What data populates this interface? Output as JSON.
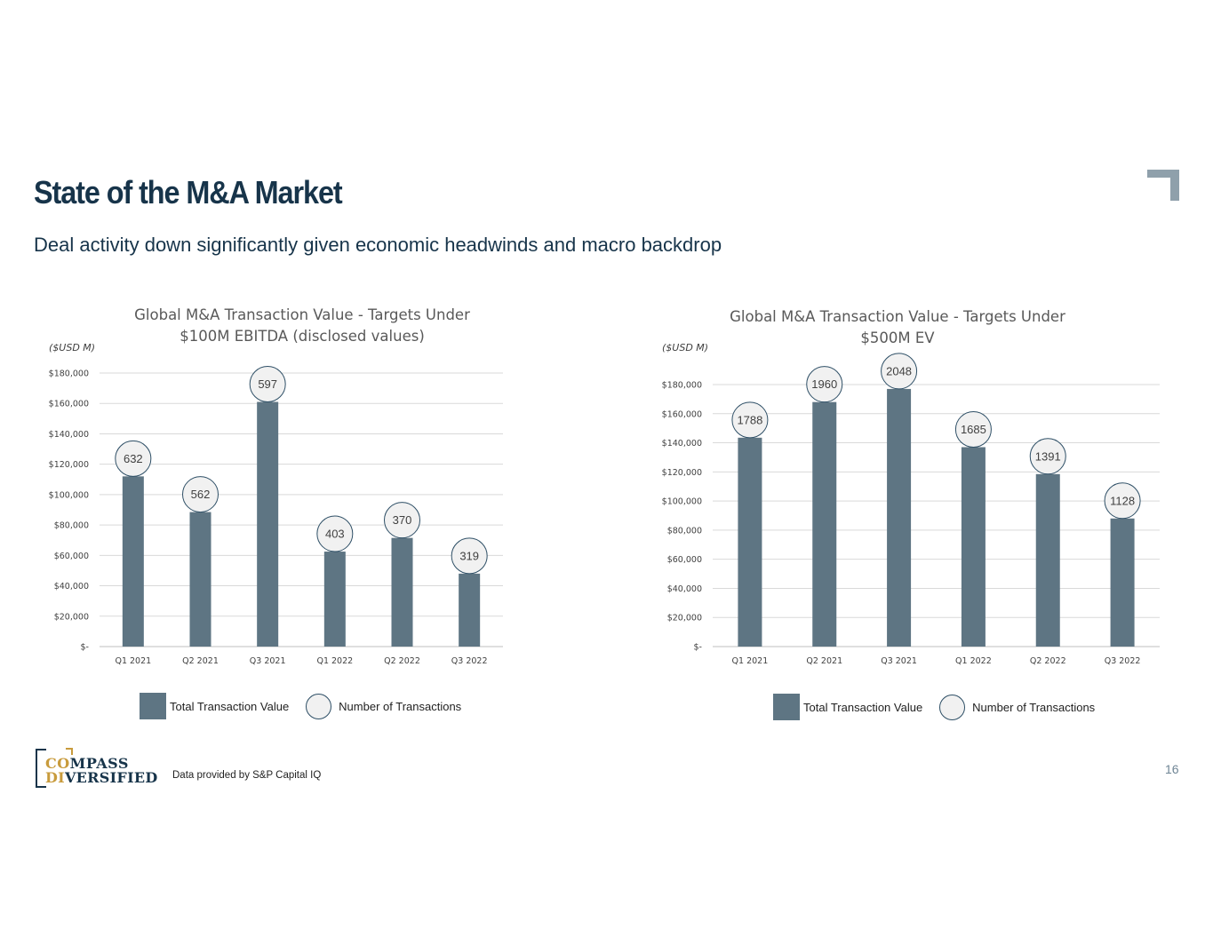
{
  "page": {
    "title": "State of the M&A Market",
    "subtitle": "Deal activity down significantly given economic headwinds and macro backdrop",
    "source_note": "Data provided by S&P Capital IQ",
    "page_number": "16",
    "logo": {
      "line1_accent": "CO",
      "line1_rest": "MPASS",
      "line2_accent": "DI",
      "line2_rest": "VERSIFIED"
    }
  },
  "colors": {
    "bar": "#5e7583",
    "bubble_fill": "#f1f1f1",
    "bubble_stroke": "#2e4f66",
    "title": "#17344a",
    "corner": "#8fa0ab"
  },
  "legend": {
    "bar_label": "Total Transaction Value",
    "bubble_label": "Number of Transactions"
  },
  "chart_data": [
    {
      "type": "bar",
      "title_lines": [
        "Global M&A Transaction Value - Targets Under",
        "$100M EBITDA (disclosed values)"
      ],
      "units_label": "($USD M)",
      "categories": [
        "Q1 2021",
        "Q2 2021",
        "Q3 2021",
        "Q1 2022",
        "Q2 2022",
        "Q3 2022"
      ],
      "values": [
        112000,
        88500,
        161000,
        62500,
        71500,
        48000
      ],
      "transaction_counts": [
        632,
        562,
        597,
        403,
        370,
        319
      ],
      "ylim": [
        0,
        180000
      ],
      "yticks": [
        0,
        20000,
        40000,
        60000,
        80000,
        100000,
        120000,
        140000,
        160000,
        180000
      ],
      "ytick_labels": [
        "$-",
        "$20,000",
        "$40,000",
        "$60,000",
        "$80,000",
        "$100,000",
        "$120,000",
        "$140,000",
        "$160,000",
        "$180,000"
      ],
      "legend_position": "bottom",
      "grid": true
    },
    {
      "type": "bar",
      "title_lines": [
        "Global M&A Transaction Value - Targets Under",
        "$500M EV"
      ],
      "units_label": "($USD M)",
      "categories": [
        "Q1 2021",
        "Q2 2021",
        "Q3 2021",
        "Q1 2022",
        "Q2 2022",
        "Q3 2022"
      ],
      "values": [
        143500,
        168000,
        177000,
        137000,
        118500,
        88000
      ],
      "transaction_counts": [
        1788,
        1960,
        2048,
        1685,
        1391,
        1128
      ],
      "ylim": [
        0,
        180000
      ],
      "yticks": [
        0,
        20000,
        40000,
        60000,
        80000,
        100000,
        120000,
        140000,
        160000,
        180000
      ],
      "ytick_labels": [
        "$-",
        "$20,000",
        "$40,000",
        "$60,000",
        "$80,000",
        "$100,000",
        "$120,000",
        "$140,000",
        "$160,000",
        "$180,000"
      ],
      "legend_position": "bottom",
      "grid": true
    }
  ]
}
